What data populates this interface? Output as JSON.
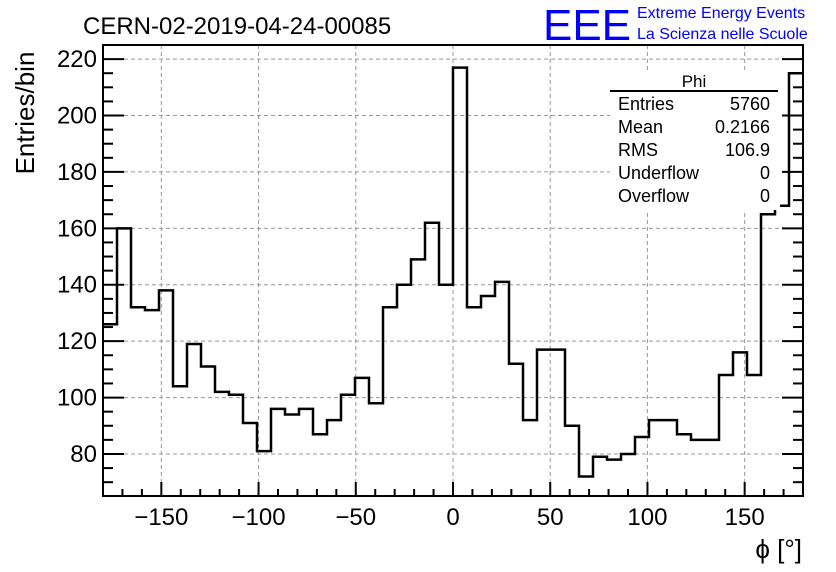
{
  "header": {
    "run_title": "CERN-02-2019-04-24-00085",
    "logo_text": "EEE",
    "logo_line1": "Extreme Energy Events",
    "logo_line2": "La Scienza nelle Scuole"
  },
  "stats_box": {
    "title": "Phi",
    "rows": [
      {
        "label": "Entries",
        "value": "5760"
      },
      {
        "label": "Mean",
        "value": "0.2166"
      },
      {
        "label": "RMS",
        "value": "106.9"
      },
      {
        "label": "Underflow",
        "value": "0"
      },
      {
        "label": "Overflow",
        "value": "0"
      }
    ]
  },
  "colors": {
    "line": "#000000",
    "grid": "#999999",
    "logo": "#0000ff"
  },
  "chart_data": {
    "type": "histogram",
    "title": "CERN-02-2019-04-24-00085",
    "xlabel": "ϕ [°]",
    "ylabel": "Entries/bin",
    "xlim": [
      -180,
      180
    ],
    "ylim": [
      65.1,
      225
    ],
    "bin_width": 7.2,
    "grid": true,
    "xticks": [
      -150,
      -100,
      -50,
      0,
      50,
      100,
      150
    ],
    "xtick_labels": [
      "−150",
      "−100",
      "−50",
      "0",
      "50",
      "100",
      "150"
    ],
    "yticks": [
      80,
      100,
      120,
      140,
      160,
      180,
      200,
      220
    ],
    "ytick_labels": [
      "80",
      "100",
      "120",
      "140",
      "160",
      "180",
      "200",
      "220"
    ],
    "values": [
      126,
      160,
      132,
      131,
      138,
      104,
      119,
      111,
      102,
      101,
      91,
      81,
      96,
      94,
      96,
      87,
      92,
      101,
      107,
      98,
      132,
      140,
      149,
      162,
      140,
      217,
      132,
      136,
      141,
      112,
      92,
      117,
      117,
      90,
      72,
      79,
      78,
      80,
      86,
      92,
      92,
      87,
      85,
      85,
      108,
      116,
      108,
      165,
      168,
      215
    ]
  }
}
